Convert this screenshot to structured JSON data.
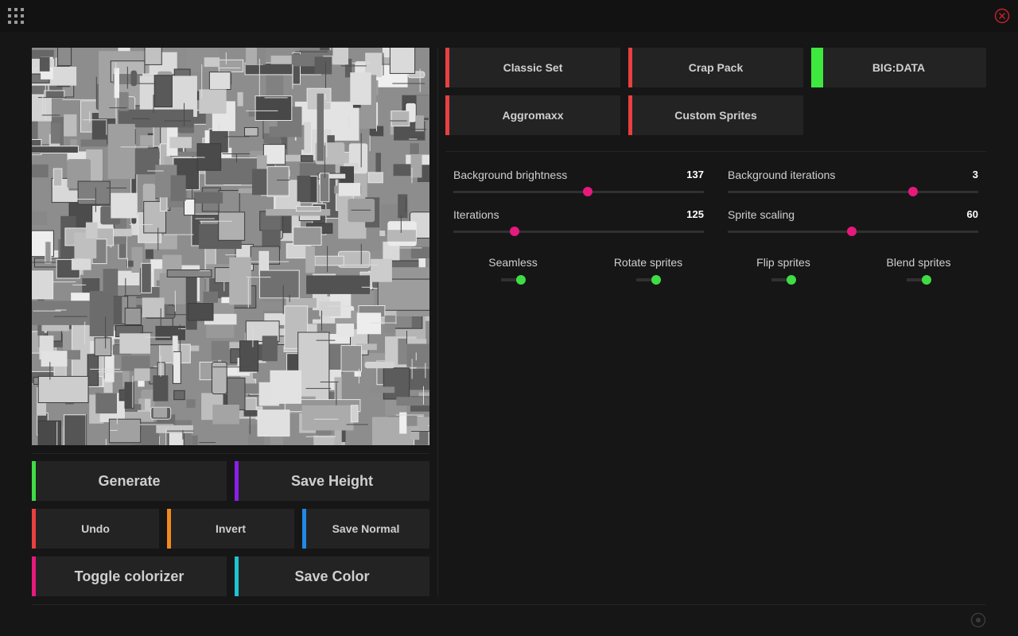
{
  "topbar": {
    "menu_icon": "grid-menu-icon",
    "close_icon": "close-circle-icon",
    "close_color": "#c0232a"
  },
  "sprite_sets": [
    {
      "label": "Classic Set",
      "active": false,
      "color": "#e84040"
    },
    {
      "label": "Crap Pack",
      "active": false,
      "color": "#e84040"
    },
    {
      "label": "BIG:DATA",
      "active": true,
      "color": "#3fe83f"
    },
    {
      "label": "Aggromaxx",
      "active": false,
      "color": "#e84040"
    },
    {
      "label": "Custom Sprites",
      "active": false,
      "color": "#e84040"
    }
  ],
  "sliders": [
    {
      "label": "Background brightness",
      "value": "137",
      "fraction": 0.537
    },
    {
      "label": "Background iterations",
      "value": "3",
      "fraction": 0.741
    },
    {
      "label": "Iterations",
      "value": "125",
      "fraction": 0.245
    },
    {
      "label": "Sprite scaling",
      "value": "60",
      "fraction": 0.495
    }
  ],
  "toggles": [
    {
      "label": "Seamless",
      "on": true
    },
    {
      "label": "Rotate sprites",
      "on": true
    },
    {
      "label": "Flip sprites",
      "on": true
    },
    {
      "label": "Blend sprites",
      "on": true
    }
  ],
  "actions": {
    "generate": {
      "label": "Generate",
      "color": "#3fdc45"
    },
    "save_height": {
      "label": "Save Height",
      "color": "#8a1fe8"
    },
    "undo": {
      "label": "Undo",
      "color": "#e84040"
    },
    "invert": {
      "label": "Invert",
      "color": "#f08a1c"
    },
    "save_normal": {
      "label": "Save Normal",
      "color": "#1f8ae8"
    },
    "toggle_colorizer": {
      "label": "Toggle colorizer",
      "color": "#e8197c"
    },
    "save_color": {
      "label": "Save Color",
      "color": "#1fc2d0"
    }
  },
  "colors": {
    "accent_slider": "#e6197c",
    "toggle_on": "#3fdc45"
  },
  "footer": {
    "settings_icon": "record-icon"
  }
}
